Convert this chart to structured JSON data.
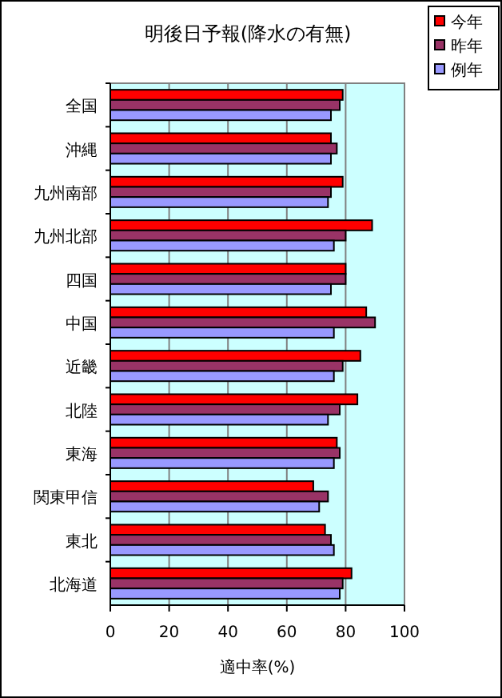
{
  "chart_data": {
    "type": "bar",
    "orientation": "horizontal",
    "title": "明後日予報(降水の有無)",
    "xlabel": "適中率(%)",
    "categories": [
      "全国",
      "沖縄",
      "九州南部",
      "九州北部",
      "四国",
      "中国",
      "近畿",
      "北陸",
      "東海",
      "関東甲信",
      "東北",
      "北海道"
    ],
    "series": [
      {
        "name": "今年",
        "color": "#ff0000",
        "values": [
          79,
          75,
          79,
          89,
          80,
          87,
          85,
          84,
          77,
          69,
          73,
          82
        ]
      },
      {
        "name": "昨年",
        "color": "#993366",
        "values": [
          78,
          77,
          75,
          80,
          80,
          90,
          79,
          78,
          78,
          74,
          75,
          79
        ]
      },
      {
        "name": "例年",
        "color": "#9999ff",
        "values": [
          75,
          75,
          74,
          76,
          75,
          76,
          76,
          74,
          76,
          71,
          76,
          78
        ]
      }
    ],
    "xlim": [
      0,
      100
    ],
    "xticks": [
      0,
      20,
      40,
      60,
      80,
      100
    ],
    "grid": "x",
    "legend": "top right"
  }
}
